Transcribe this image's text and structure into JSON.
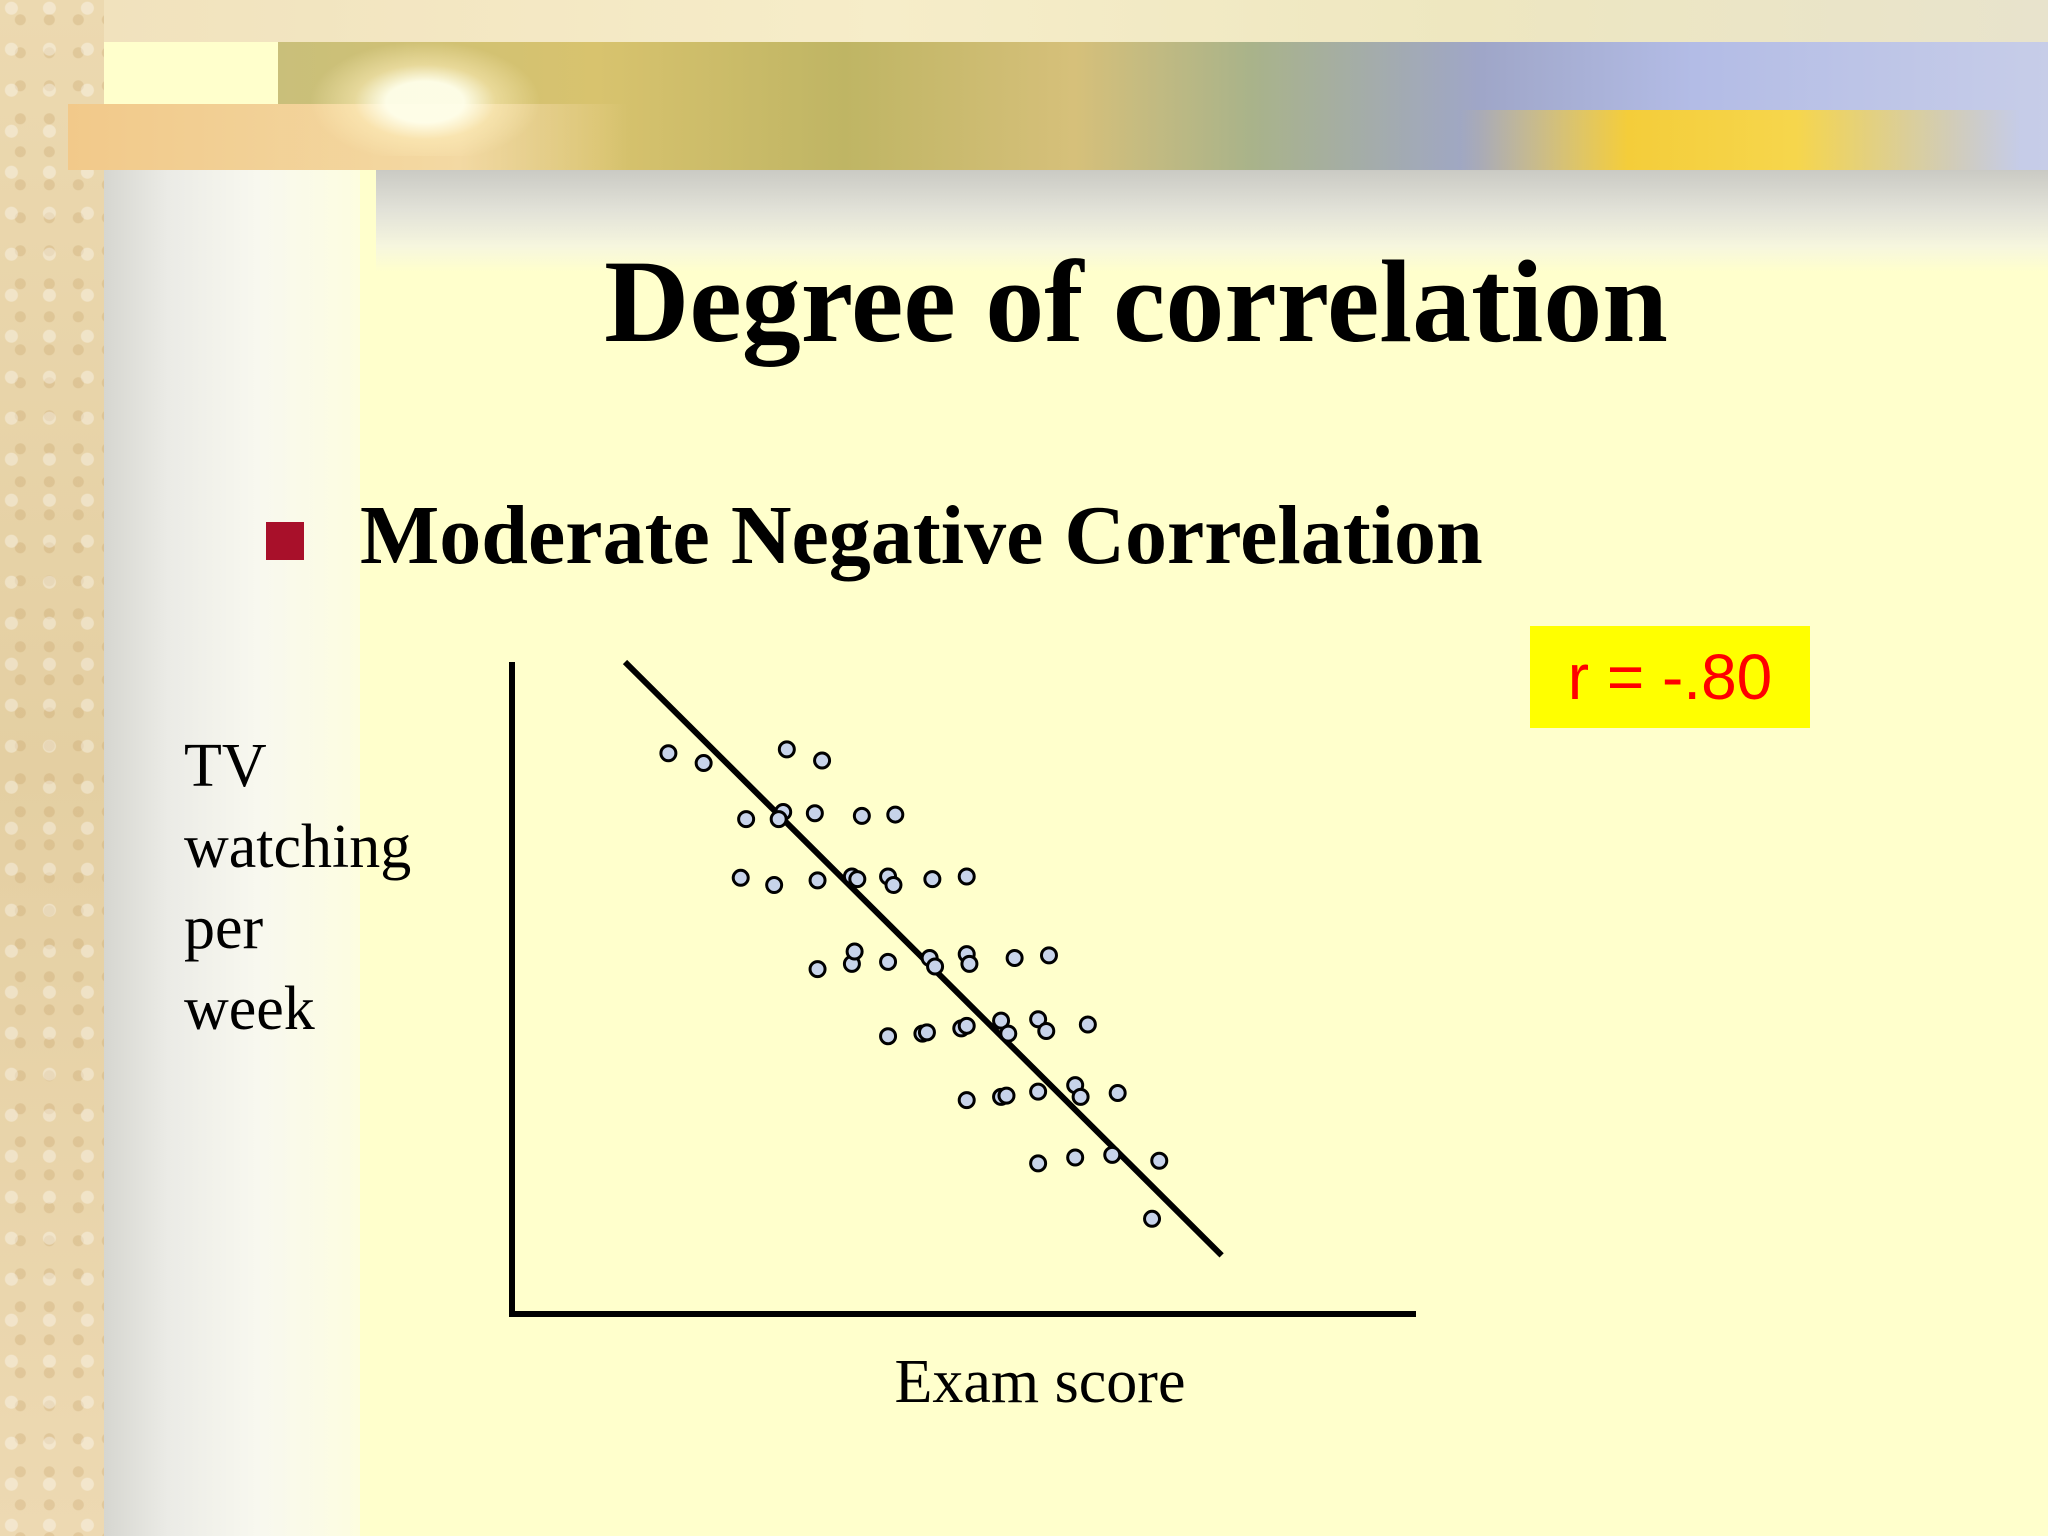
{
  "slide": {
    "title": "Degree of correlation",
    "bullet": "Moderate Negative Correlation",
    "r_label": "r = -.80",
    "colors": {
      "background": "#ffffcc",
      "bullet": "#a8102a",
      "badge_bg": "#ffff00",
      "badge_text": "#ff0000",
      "point_fill": "#c7d3ea"
    }
  },
  "chart_data": {
    "type": "scatter",
    "title": "",
    "xlabel": "Exam score",
    "ylabel_lines": [
      "TV",
      "watching",
      "per",
      "week"
    ],
    "xlim": [
      0,
      100
    ],
    "ylim": [
      0,
      100
    ],
    "grid": false,
    "legend": "none",
    "trend_line": {
      "x": [
        12.5,
        78.5
      ],
      "y": [
        100,
        9
      ]
    },
    "points": [
      {
        "x": 17.3,
        "y": 86.0
      },
      {
        "x": 21.2,
        "y": 84.5
      },
      {
        "x": 30.4,
        "y": 86.6
      },
      {
        "x": 34.3,
        "y": 84.9
      },
      {
        "x": 30.0,
        "y": 77.0
      },
      {
        "x": 25.9,
        "y": 75.9
      },
      {
        "x": 29.5,
        "y": 75.9
      },
      {
        "x": 33.5,
        "y": 76.8
      },
      {
        "x": 38.7,
        "y": 76.4
      },
      {
        "x": 42.4,
        "y": 76.6
      },
      {
        "x": 25.3,
        "y": 66.9
      },
      {
        "x": 29.0,
        "y": 65.8
      },
      {
        "x": 33.8,
        "y": 66.5
      },
      {
        "x": 37.6,
        "y": 67.1
      },
      {
        "x": 38.2,
        "y": 66.7
      },
      {
        "x": 41.6,
        "y": 67.1
      },
      {
        "x": 42.2,
        "y": 65.8
      },
      {
        "x": 46.5,
        "y": 66.7
      },
      {
        "x": 50.3,
        "y": 67.1
      },
      {
        "x": 33.8,
        "y": 52.9
      },
      {
        "x": 37.6,
        "y": 53.7
      },
      {
        "x": 37.9,
        "y": 55.6
      },
      {
        "x": 41.6,
        "y": 54.0
      },
      {
        "x": 46.2,
        "y": 54.6
      },
      {
        "x": 46.8,
        "y": 53.3
      },
      {
        "x": 50.3,
        "y": 55.2
      },
      {
        "x": 50.6,
        "y": 53.7
      },
      {
        "x": 55.6,
        "y": 54.6
      },
      {
        "x": 59.4,
        "y": 55.0
      },
      {
        "x": 41.6,
        "y": 42.6
      },
      {
        "x": 45.4,
        "y": 43.0
      },
      {
        "x": 45.9,
        "y": 43.2
      },
      {
        "x": 49.7,
        "y": 43.8
      },
      {
        "x": 50.3,
        "y": 44.2
      },
      {
        "x": 54.1,
        "y": 45.0
      },
      {
        "x": 54.9,
        "y": 43.0
      },
      {
        "x": 58.2,
        "y": 45.2
      },
      {
        "x": 59.1,
        "y": 43.4
      },
      {
        "x": 63.7,
        "y": 44.4
      },
      {
        "x": 50.3,
        "y": 32.8
      },
      {
        "x": 54.1,
        "y": 33.3
      },
      {
        "x": 54.7,
        "y": 33.5
      },
      {
        "x": 58.2,
        "y": 34.1
      },
      {
        "x": 62.3,
        "y": 35.1
      },
      {
        "x": 62.9,
        "y": 33.3
      },
      {
        "x": 67.0,
        "y": 33.9
      },
      {
        "x": 58.2,
        "y": 23.1
      },
      {
        "x": 62.3,
        "y": 24.0
      },
      {
        "x": 66.4,
        "y": 24.4
      },
      {
        "x": 71.6,
        "y": 23.5
      },
      {
        "x": 70.8,
        "y": 14.6
      }
    ]
  }
}
